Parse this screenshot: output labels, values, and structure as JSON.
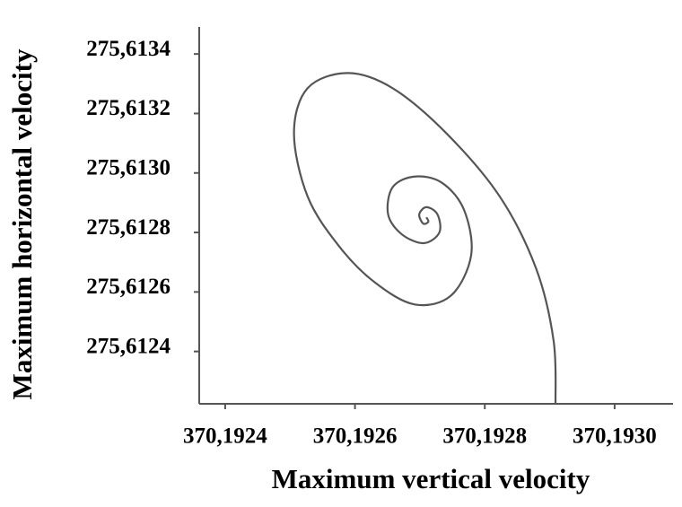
{
  "chart_data": {
    "type": "line",
    "x_label": "Maximum vertical velocity",
    "y_label": "Maximum horizontal velocity",
    "x": [
      370.192909,
      370.192906,
      370.192879,
      370.192823,
      370.192741,
      370.192658,
      370.192589,
      370.192527,
      370.192506,
      370.192527,
      370.192575,
      370.19263,
      370.192692,
      370.192748,
      370.192779,
      370.192768,
      370.192734,
      370.192692,
      370.192658,
      370.192651,
      370.192672,
      370.192706,
      370.19273,
      370.192727,
      370.19271,
      370.192699,
      370.192705,
      370.192713,
      370.19271
    ],
    "series": [
      {
        "color": "#555555",
        "values": [
          275.612224,
          275.612436,
          275.612679,
          275.612921,
          275.613133,
          275.613285,
          275.613336,
          275.613285,
          275.613133,
          275.612921,
          275.612755,
          275.612633,
          275.612558,
          275.612588,
          275.612724,
          275.612876,
          275.612967,
          275.612988,
          275.612952,
          275.612861,
          275.612794,
          275.612764,
          275.6128,
          275.612861,
          275.612885,
          275.612861,
          275.61283,
          275.612836,
          275.612851
        ]
      }
    ],
    "xlim": [
      370.19236,
      370.19309
    ],
    "ylim": [
      275.612224,
      275.613491
    ],
    "xticks": [
      {
        "value": 370.1924,
        "label": "370,1924"
      },
      {
        "value": 370.1926,
        "label": "370,1926"
      },
      {
        "value": 370.1928,
        "label": "370,1928"
      },
      {
        "value": 370.193,
        "label": "370,1930"
      }
    ],
    "yticks": [
      {
        "value": 275.6124,
        "label": "275,6124"
      },
      {
        "value": 275.6126,
        "label": "275,6126"
      },
      {
        "value": 275.6128,
        "label": "275,6128"
      },
      {
        "value": 275.613,
        "label": "275,6130"
      },
      {
        "value": 275.6132,
        "label": "275,6132"
      },
      {
        "value": 275.6134,
        "label": "275,6134"
      }
    ],
    "grid": false
  }
}
